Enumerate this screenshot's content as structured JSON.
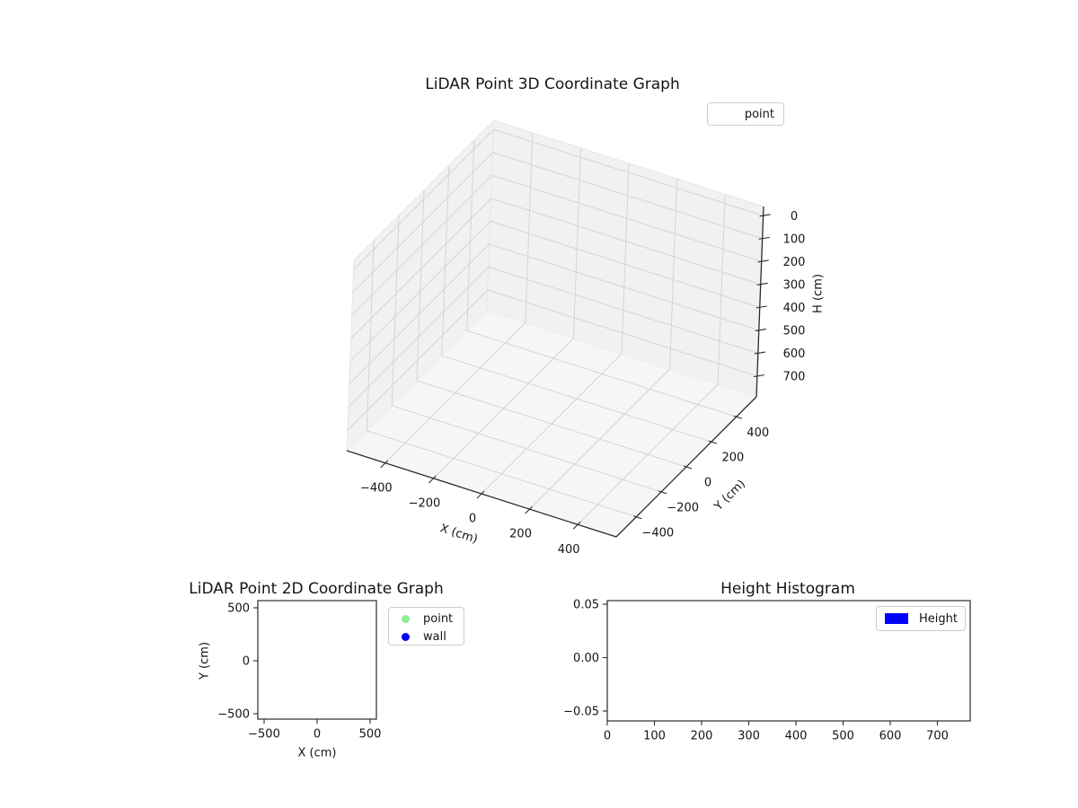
{
  "figure": {
    "background": "#ffffff"
  },
  "colors": {
    "point_marker": "#90EE90",
    "wall_marker": "#0000FF",
    "height_bar": "#0000FF",
    "grid": "#d4d4d4",
    "pane_wall": "#f1f1f1",
    "pane_floor": "#f6f6f6",
    "axis_line": "#2b2b2b",
    "text": "#141414"
  },
  "chart_data": [
    {
      "id": "lidar-3d",
      "type": "scatter3d",
      "title": "LiDAR Point 3D Coordinate Graph",
      "xlabel": "X (cm)",
      "ylabel": "Y (cm)",
      "zlabel": "H (cm)",
      "x_tick_values": [
        -400,
        -200,
        0,
        200,
        400
      ],
      "x_tick_labels": [
        "−400",
        "−200",
        "0",
        "200",
        "400"
      ],
      "y_tick_values": [
        -400,
        -200,
        0,
        200,
        400
      ],
      "y_tick_labels": [
        "−400",
        "−200",
        "0",
        "200",
        "400"
      ],
      "z_tick_values": [
        0,
        100,
        200,
        300,
        400,
        500,
        600,
        700
      ],
      "z_tick_labels": [
        "0",
        "100",
        "200",
        "300",
        "400",
        "500",
        "600",
        "700"
      ],
      "xlim": [
        -560,
        560
      ],
      "ylim": [
        -560,
        560
      ],
      "zlim": [
        0,
        750
      ],
      "z_axis_inverted": true,
      "grid": true,
      "legend": {
        "position": "upper right",
        "entries": [
          {
            "label": "point",
            "handle": "none"
          }
        ]
      },
      "series": [
        {
          "name": "point",
          "points": []
        }
      ]
    },
    {
      "id": "lidar-2d",
      "type": "scatter",
      "title": "LiDAR Point 2D Coordinate Graph",
      "xlabel": "X (cm)",
      "ylabel": "Y (cm)",
      "x_tick_values": [
        -500,
        0,
        500
      ],
      "x_tick_labels": [
        "−500",
        "0",
        "500"
      ],
      "y_tick_values": [
        500,
        0,
        -500
      ],
      "y_tick_labels": [
        "500",
        "0",
        "−500"
      ],
      "xlim": [
        -560,
        560
      ],
      "ylim": [
        -560,
        560
      ],
      "grid": false,
      "legend": {
        "position": "outside upper right",
        "entries": [
          {
            "label": "point",
            "color": "#90EE90",
            "marker": "circle"
          },
          {
            "label": "wall",
            "color": "#0000FF",
            "marker": "circle"
          }
        ]
      },
      "series": [
        {
          "name": "point",
          "points": []
        },
        {
          "name": "wall",
          "points": []
        }
      ]
    },
    {
      "id": "height-histogram",
      "type": "bar",
      "title": "Height Histogram",
      "xlabel": "",
      "ylabel": "",
      "x_tick_values": [
        0,
        100,
        200,
        300,
        400,
        500,
        600,
        700
      ],
      "x_tick_labels": [
        "0",
        "100",
        "200",
        "300",
        "400",
        "500",
        "600",
        "700"
      ],
      "y_tick_values": [
        0.05,
        0.0,
        -0.05
      ],
      "y_tick_labels": [
        "0.05",
        "0.00",
        "−0.05"
      ],
      "xlim": [
        0,
        770
      ],
      "ylim": [
        -0.06,
        0.053
      ],
      "grid": false,
      "legend": {
        "position": "upper right",
        "entries": [
          {
            "label": "Height",
            "color": "#0000FF",
            "marker": "rect"
          }
        ]
      },
      "series": [
        {
          "name": "Height",
          "values": []
        }
      ]
    }
  ]
}
